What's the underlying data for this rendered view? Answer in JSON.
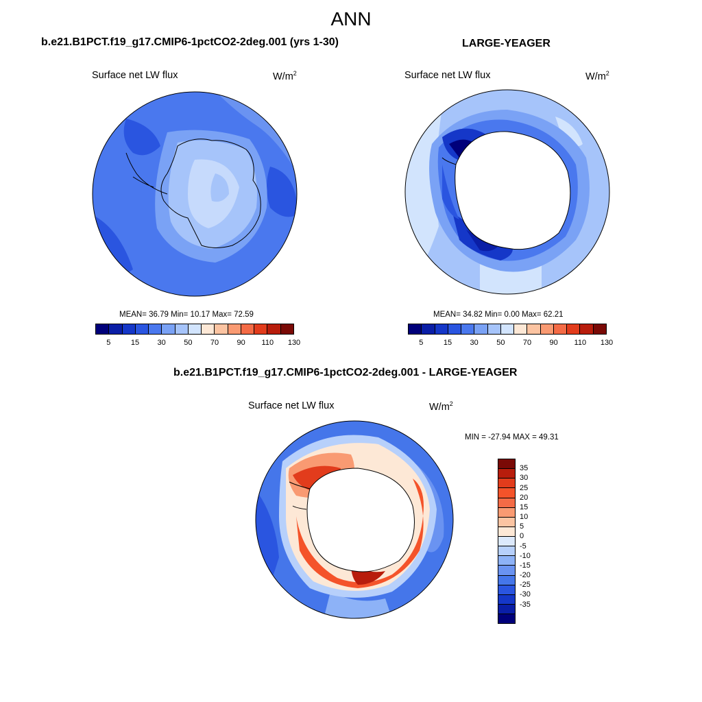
{
  "main_title": "ANN",
  "panels": [
    {
      "title": "b.e21.B1PCT.f19_g17.CMIP6-1pctCO2-2deg.001 (yrs 1-30)",
      "variable": "Surface net LW flux",
      "units_base": "W/m",
      "units_exp": "2",
      "stats": "MEAN=  36.79  Min=  10.17  Max=  72.59",
      "mean": 36.79,
      "min": 10.17,
      "max": 72.59
    },
    {
      "title": "LARGE-YEAGER",
      "variable": "Surface net LW flux",
      "units_base": "W/m",
      "units_exp": "2",
      "stats": "MEAN=  34.82  Min=   0.00  Max=  62.21",
      "mean": 34.82,
      "min": 0.0,
      "max": 62.21
    },
    {
      "title": "b.e21.B1PCT.f19_g17.CMIP6-1pctCO2-2deg.001 - LARGE-YEAGER",
      "variable": "Surface net LW flux",
      "units_base": "W/m",
      "units_exp": "2",
      "stats": "MIN = -27.94 MAX =  49.31",
      "min": -27.94,
      "max": 49.31
    }
  ],
  "colorbar_abs": {
    "tick_labels": [
      "5",
      "15",
      "30",
      "50",
      "70",
      "90",
      "110",
      "130"
    ],
    "colors": [
      "#00007a",
      "#0a1ea6",
      "#1537c8",
      "#2a55e0",
      "#4a78ee",
      "#7aa2f5",
      "#a6c4fa",
      "#d2e4fd",
      "#fde8d6",
      "#fcc4a2",
      "#f99a72",
      "#f46b46",
      "#e23c1c",
      "#b81d0c",
      "#7a0a06"
    ]
  },
  "colorbar_diff": {
    "tick_labels": [
      "35",
      "30",
      "25",
      "20",
      "15",
      "10",
      "5",
      "0",
      "-5",
      "-10",
      "-15",
      "-20",
      "-25",
      "-30",
      "-35"
    ],
    "colors": [
      "#7a0a06",
      "#b81d0c",
      "#e23c1c",
      "#f4532a",
      "#f46b46",
      "#f99a72",
      "#fcc4a2",
      "#fde8d6",
      "#dce9fc",
      "#b7d0fb",
      "#8db2f7",
      "#6a93f1",
      "#4576ea",
      "#2a55e0",
      "#1537c8",
      "#0a1ea6",
      "#00007a"
    ]
  }
}
